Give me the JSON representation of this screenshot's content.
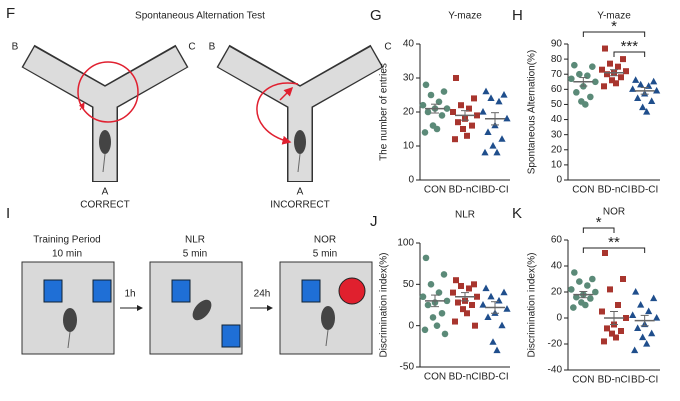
{
  "chart_data": [
    {
      "type": "strip",
      "panel": "G",
      "title": "Y-maze",
      "ylabel": "The number of entries",
      "categories": [
        "CON",
        "BD-nCI",
        "BD-CI"
      ],
      "colors": [
        "#5b8a78",
        "#a8352e",
        "#1f4e8c"
      ],
      "markers": [
        "circle",
        "square",
        "triangle"
      ],
      "values": [
        [
          28,
          26,
          25,
          23,
          22,
          21,
          21,
          20,
          19,
          16,
          15,
          14
        ],
        [
          30,
          24,
          22,
          21,
          20,
          19,
          18,
          17,
          16,
          15,
          13,
          12
        ],
        [
          26,
          25,
          24,
          23,
          20,
          18,
          16,
          14,
          12,
          10,
          8,
          8
        ]
      ],
      "means": [
        21,
        19,
        18
      ],
      "sems": [
        1.3,
        1.4,
        1.8
      ],
      "ylim": [
        0,
        40
      ],
      "yticks": [
        0,
        10,
        20,
        30,
        40
      ],
      "annotations": []
    },
    {
      "type": "strip",
      "panel": "H",
      "title": "Y-maze",
      "ylabel": "Spontaneous Alternation(%)",
      "categories": [
        "CON",
        "BD-nCI",
        "BD-CI"
      ],
      "colors": [
        "#5b8a78",
        "#a8352e",
        "#1f4e8c"
      ],
      "markers": [
        "circle",
        "square",
        "triangle"
      ],
      "values": [
        [
          76,
          75,
          70,
          69,
          67,
          65,
          62,
          58,
          55,
          52,
          50
        ],
        [
          87,
          80,
          77,
          75,
          73,
          72,
          71,
          70,
          68,
          66,
          64,
          62
        ],
        [
          66,
          65,
          63,
          62,
          60,
          59,
          57,
          54,
          52,
          48,
          45
        ]
      ],
      "means": [
        65,
        71,
        59
      ],
      "sems": [
        2.8,
        2.0,
        2.2
      ],
      "ylim": [
        0,
        90
      ],
      "yticks": [
        0,
        10,
        20,
        30,
        40,
        50,
        60,
        70,
        80,
        90
      ],
      "annotations": [
        {
          "label": "*",
          "between": [
            "CON",
            "BD-CI"
          ]
        },
        {
          "label": "***",
          "between": [
            "BD-nCI",
            "BD-CI"
          ]
        }
      ]
    },
    {
      "type": "strip",
      "panel": "J",
      "title": "NLR",
      "ylabel": "Discrimination index(%)",
      "categories": [
        "CON",
        "BD-nCI",
        "BD-CI"
      ],
      "colors": [
        "#5b8a78",
        "#a8352e",
        "#1f4e8c"
      ],
      "markers": [
        "circle",
        "square",
        "triangle"
      ],
      "values": [
        [
          82,
          62,
          50,
          40,
          35,
          30,
          28,
          25,
          15,
          10,
          0,
          -5,
          -10
        ],
        [
          55,
          50,
          48,
          45,
          40,
          35,
          30,
          28,
          25,
          20,
          15,
          5,
          0
        ],
        [
          45,
          40,
          35,
          30,
          25,
          20,
          15,
          10,
          0,
          -20,
          -30
        ]
      ],
      "means": [
        30,
        35,
        22
      ],
      "sems": [
        7,
        5,
        7
      ],
      "ylim": [
        -50,
        100
      ],
      "yticks": [
        -50,
        0,
        50,
        100
      ],
      "annotations": []
    },
    {
      "type": "strip",
      "panel": "K",
      "title": "NOR",
      "ylabel": "Discrimination index(%)",
      "categories": [
        "CON",
        "BD-nCI",
        "BD-CI"
      ],
      "colors": [
        "#5b8a78",
        "#a8352e",
        "#1f4e8c"
      ],
      "markers": [
        "circle",
        "square",
        "triangle"
      ],
      "values": [
        [
          35,
          30,
          28,
          25,
          22,
          20,
          18,
          16,
          15,
          12,
          10,
          8
        ],
        [
          50,
          30,
          22,
          10,
          5,
          0,
          -5,
          -8,
          -10,
          -12,
          -15,
          -18
        ],
        [
          20,
          15,
          10,
          5,
          2,
          0,
          -5,
          -8,
          -12,
          -15,
          -20,
          -25
        ]
      ],
      "means": [
        18,
        0,
        -2
      ],
      "sems": [
        2.4,
        5,
        4
      ],
      "ylim": [
        -40,
        60
      ],
      "yticks": [
        -40,
        -20,
        0,
        20,
        40,
        60
      ],
      "annotations": [
        {
          "label": "*",
          "between": [
            "CON",
            "BD-nCI"
          ]
        },
        {
          "label": "**",
          "between": [
            "CON",
            "BD-CI"
          ]
        }
      ]
    }
  ],
  "figure_f": {
    "panel": "F",
    "title": "Spontaneous Alternation Test",
    "mazes": [
      {
        "labels": [
          "B",
          "C",
          "A"
        ],
        "caption": "CORRECT"
      },
      {
        "labels": [
          "B",
          "C",
          "A"
        ],
        "caption": "INCORRECT"
      }
    ]
  },
  "figure_i": {
    "panel": "I",
    "stages": [
      {
        "name": "Training Period",
        "duration": "10 min"
      },
      {
        "name": "NLR",
        "duration": "5 min"
      },
      {
        "name": "NOR",
        "duration": "5 min"
      }
    ],
    "intervals": [
      "1h",
      "24h"
    ]
  }
}
